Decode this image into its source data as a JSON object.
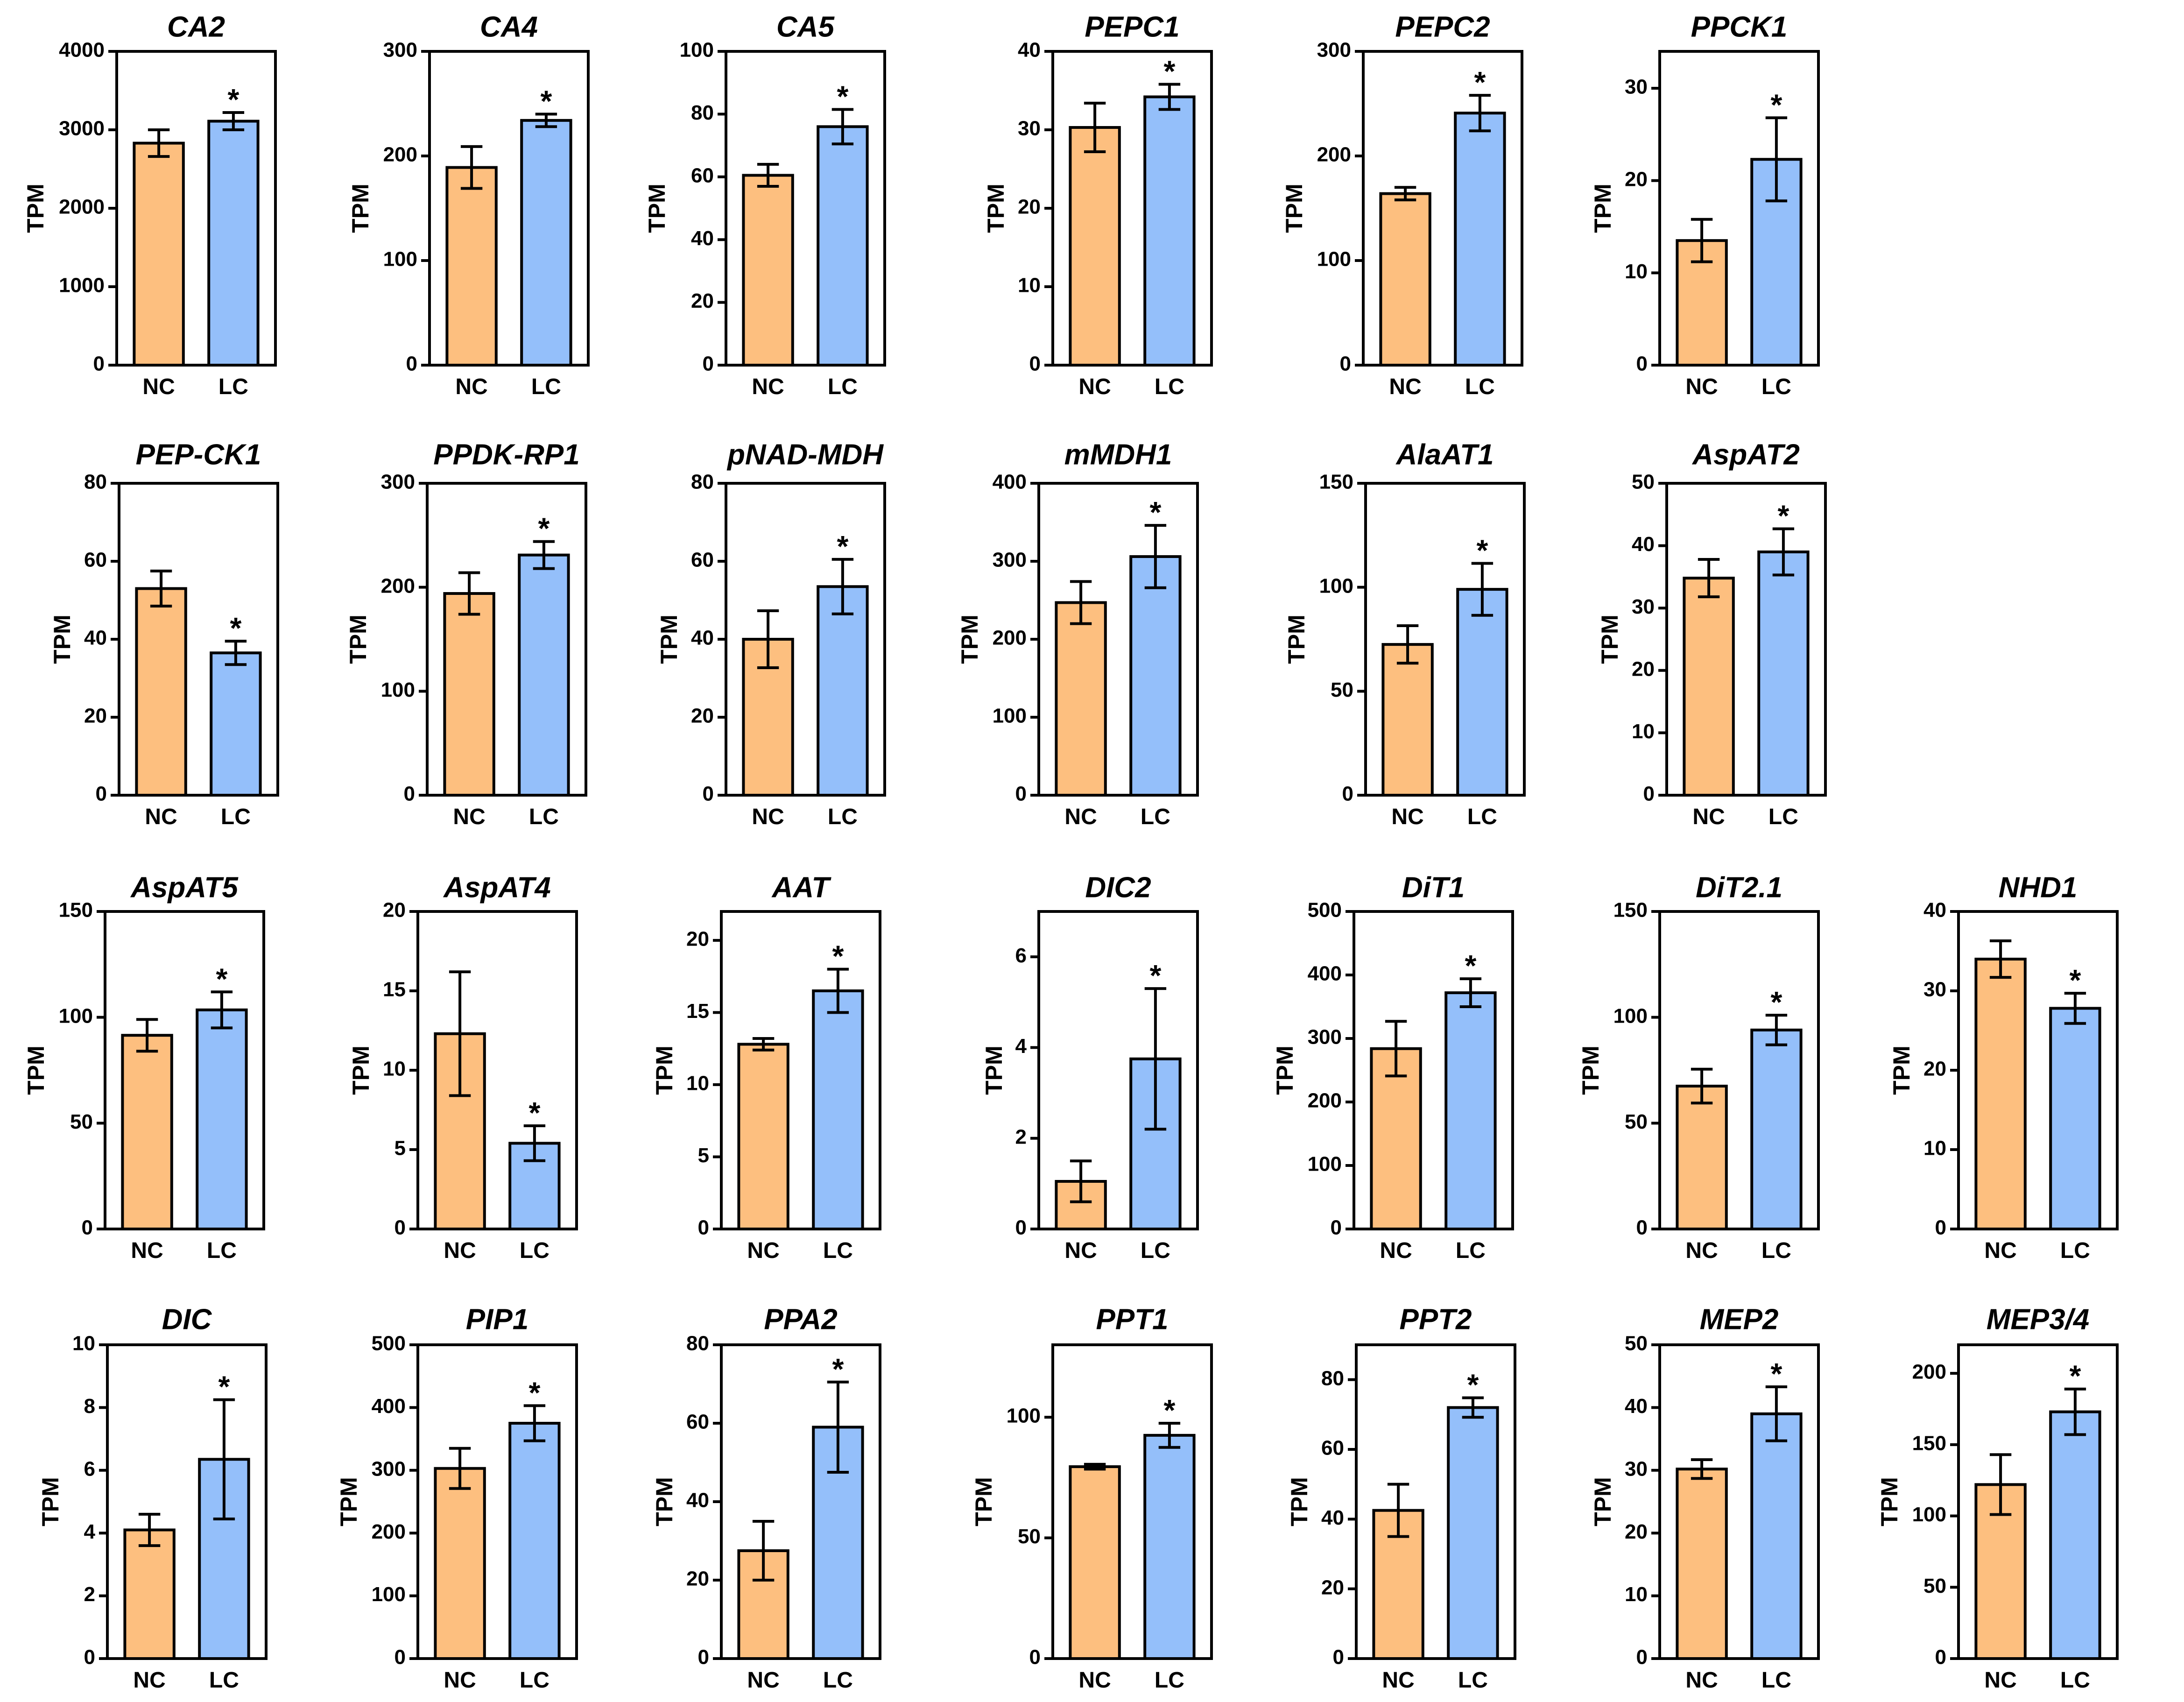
{
  "chart_data": {
    "type": "bar",
    "series_names": [
      "NC",
      "LC"
    ],
    "colors": {
      "NC": "#FDBF7F",
      "LC": "#94BFFA",
      "outline": "#000000"
    },
    "significance_marker": "*",
    "panels": [
      {
        "title": "CA2",
        "ylabel": "TPM",
        "categories": [
          "NC",
          "LC"
        ],
        "ylim": [
          0,
          4000
        ],
        "yticks": [
          "0",
          "1000",
          "2000",
          "3000",
          "4000"
        ],
        "values": [
          2830,
          3110
        ],
        "errors": [
          170,
          110
        ],
        "significant": [
          false,
          true
        ]
      },
      {
        "title": "CA4",
        "ylabel": "TPM",
        "categories": [
          "NC",
          "LC"
        ],
        "ylim": [
          0,
          300
        ],
        "yticks": [
          "0",
          "100",
          "200",
          "300"
        ],
        "values": [
          189,
          234
        ],
        "errors": [
          20,
          6
        ],
        "significant": [
          false,
          true
        ]
      },
      {
        "title": "CA5",
        "ylabel": "TPM",
        "categories": [
          "NC",
          "LC"
        ],
        "ylim": [
          0,
          100
        ],
        "yticks": [
          "0",
          "20",
          "40",
          "60",
          "80",
          "100"
        ],
        "values": [
          60.5,
          76
        ],
        "errors": [
          3.5,
          5.5
        ],
        "significant": [
          false,
          true
        ]
      },
      {
        "title": "PEPC1",
        "ylabel": "TPM",
        "categories": [
          "NC",
          "LC"
        ],
        "ylim": [
          0,
          40
        ],
        "yticks": [
          "0",
          "10",
          "20",
          "30",
          "40"
        ],
        "values": [
          30.3,
          34.2
        ],
        "errors": [
          3.1,
          1.6
        ],
        "significant": [
          false,
          true
        ]
      },
      {
        "title": "PEPC2",
        "ylabel": "TPM",
        "categories": [
          "NC",
          "LC"
        ],
        "ylim": [
          0,
          300
        ],
        "yticks": [
          "0",
          "100",
          "200",
          "300"
        ],
        "values": [
          164,
          241
        ],
        "errors": [
          6,
          17
        ],
        "significant": [
          false,
          true
        ]
      },
      {
        "title": "PPCK1",
        "ylabel": "TPM",
        "categories": [
          "NC",
          "LC"
        ],
        "ylim": [
          0,
          34
        ],
        "yticks": [
          "0",
          "10",
          "20",
          "30"
        ],
        "values": [
          13.5,
          22.3
        ],
        "errors": [
          2.3,
          4.5
        ],
        "significant": [
          false,
          true
        ]
      },
      {
        "title": "PEP-CK1",
        "ylabel": "TPM",
        "categories": [
          "NC",
          "LC"
        ],
        "ylim": [
          0,
          80
        ],
        "yticks": [
          "0",
          "20",
          "40",
          "60",
          "80"
        ],
        "values": [
          53,
          36.5
        ],
        "errors": [
          4.5,
          3
        ],
        "significant": [
          false,
          true
        ]
      },
      {
        "title": "PPDK-RP1",
        "ylabel": "TPM",
        "categories": [
          "NC",
          "LC"
        ],
        "ylim": [
          0,
          300
        ],
        "yticks": [
          "0",
          "100",
          "200",
          "300"
        ],
        "values": [
          194,
          231
        ],
        "errors": [
          20,
          13
        ],
        "significant": [
          false,
          true
        ]
      },
      {
        "title": "pNAD-MDH",
        "ylabel": "TPM",
        "categories": [
          "NC",
          "LC"
        ],
        "ylim": [
          0,
          80
        ],
        "yticks": [
          "0",
          "20",
          "40",
          "60",
          "80"
        ],
        "values": [
          40,
          53.5
        ],
        "errors": [
          7.3,
          7
        ],
        "significant": [
          false,
          true
        ]
      },
      {
        "title": "mMDH1",
        "ylabel": "TPM",
        "categories": [
          "NC",
          "LC"
        ],
        "ylim": [
          0,
          400
        ],
        "yticks": [
          "0",
          "100",
          "200",
          "300",
          "400"
        ],
        "values": [
          247,
          306
        ],
        "errors": [
          27,
          40
        ],
        "significant": [
          false,
          true
        ]
      },
      {
        "title": "AlaAT1",
        "ylabel": "TPM",
        "categories": [
          "NC",
          "LC"
        ],
        "ylim": [
          0,
          150
        ],
        "yticks": [
          "0",
          "50",
          "100",
          "150"
        ],
        "values": [
          72.5,
          99
        ],
        "errors": [
          9,
          12.5
        ],
        "significant": [
          false,
          true
        ]
      },
      {
        "title": "AspAT2",
        "ylabel": "TPM",
        "categories": [
          "NC",
          "LC"
        ],
        "ylim": [
          0,
          50
        ],
        "yticks": [
          "0",
          "10",
          "20",
          "30",
          "40",
          "50"
        ],
        "values": [
          34.8,
          39
        ],
        "errors": [
          3,
          3.7
        ],
        "significant": [
          false,
          true
        ]
      },
      {
        "title": "AspAT5",
        "ylabel": "TPM",
        "categories": [
          "NC",
          "LC"
        ],
        "ylim": [
          0,
          150
        ],
        "yticks": [
          "0",
          "50",
          "100",
          "150"
        ],
        "values": [
          91.5,
          103.5
        ],
        "errors": [
          7.5,
          8.5
        ],
        "significant": [
          false,
          true
        ]
      },
      {
        "title": "AspAT4",
        "ylabel": "TPM",
        "categories": [
          "NC",
          "LC"
        ],
        "ylim": [
          0,
          20
        ],
        "yticks": [
          "0",
          "5",
          "10",
          "15",
          "20"
        ],
        "values": [
          12.3,
          5.4
        ],
        "errors": [
          3.9,
          1.1
        ],
        "significant": [
          false,
          true
        ]
      },
      {
        "title": "AAT",
        "ylabel": "TPM",
        "categories": [
          "NC",
          "LC"
        ],
        "ylim": [
          0,
          22
        ],
        "yticks": [
          "0",
          "5",
          "10",
          "15",
          "20"
        ],
        "values": [
          12.8,
          16.5
        ],
        "errors": [
          0.4,
          1.5
        ],
        "significant": [
          false,
          true
        ]
      },
      {
        "title": "DIC2",
        "ylabel": "TPM",
        "categories": [
          "NC",
          "LC"
        ],
        "ylim": [
          0,
          7
        ],
        "yticks": [
          "0",
          "2",
          "4",
          "6"
        ],
        "values": [
          1.05,
          3.75
        ],
        "errors": [
          0.45,
          1.55
        ],
        "significant": [
          false,
          true
        ]
      },
      {
        "title": "DiT1",
        "ylabel": "TPM",
        "categories": [
          "NC",
          "LC"
        ],
        "ylim": [
          0,
          500
        ],
        "yticks": [
          "0",
          "100",
          "200",
          "300",
          "400",
          "500"
        ],
        "values": [
          284,
          372
        ],
        "errors": [
          43,
          22
        ],
        "significant": [
          false,
          true
        ]
      },
      {
        "title": "DiT2.1",
        "ylabel": "TPM",
        "categories": [
          "NC",
          "LC"
        ],
        "ylim": [
          0,
          150
        ],
        "yticks": [
          "0",
          "50",
          "100",
          "150"
        ],
        "values": [
          67.5,
          94
        ],
        "errors": [
          8,
          7
        ],
        "significant": [
          false,
          true
        ]
      },
      {
        "title": "NHD1",
        "ylabel": "TPM",
        "categories": [
          "NC",
          "LC"
        ],
        "ylim": [
          0,
          40
        ],
        "yticks": [
          "0",
          "10",
          "20",
          "30",
          "40"
        ],
        "values": [
          34,
          27.8
        ],
        "errors": [
          2.3,
          1.9
        ],
        "significant": [
          false,
          true
        ]
      },
      {
        "title": "DIC",
        "ylabel": "TPM",
        "categories": [
          "NC",
          "LC"
        ],
        "ylim": [
          0,
          10
        ],
        "yticks": [
          "0",
          "2",
          "4",
          "6",
          "8",
          "10"
        ],
        "values": [
          4.1,
          6.35
        ],
        "errors": [
          0.5,
          1.9
        ],
        "significant": [
          false,
          true
        ]
      },
      {
        "title": "PIP1",
        "ylabel": "TPM",
        "categories": [
          "NC",
          "LC"
        ],
        "ylim": [
          0,
          500
        ],
        "yticks": [
          "0",
          "100",
          "200",
          "300",
          "400",
          "500"
        ],
        "values": [
          303,
          375
        ],
        "errors": [
          32,
          28
        ],
        "significant": [
          false,
          true
        ]
      },
      {
        "title": "PPA2",
        "ylabel": "TPM",
        "categories": [
          "NC",
          "LC"
        ],
        "ylim": [
          0,
          80
        ],
        "yticks": [
          "0",
          "20",
          "40",
          "60",
          "80"
        ],
        "values": [
          27.5,
          59
        ],
        "errors": [
          7.5,
          11.5
        ],
        "significant": [
          false,
          true
        ]
      },
      {
        "title": "PPT1",
        "ylabel": "TPM",
        "categories": [
          "NC",
          "LC"
        ],
        "ylim": [
          0,
          130
        ],
        "yticks": [
          "0",
          "50",
          "100"
        ],
        "values": [
          79.5,
          92.5
        ],
        "errors": [
          1,
          5
        ],
        "significant": [
          false,
          true
        ]
      },
      {
        "title": "PPT2",
        "ylabel": "TPM",
        "categories": [
          "NC",
          "LC"
        ],
        "ylim": [
          0,
          90
        ],
        "yticks": [
          "0",
          "20",
          "40",
          "60",
          "80"
        ],
        "values": [
          42.5,
          72
        ],
        "errors": [
          7.5,
          2.8
        ],
        "significant": [
          false,
          true
        ]
      },
      {
        "title": "MEP2",
        "ylabel": "TPM",
        "categories": [
          "NC",
          "LC"
        ],
        "ylim": [
          0,
          50
        ],
        "yticks": [
          "0",
          "10",
          "20",
          "30",
          "40",
          "50"
        ],
        "values": [
          30.2,
          39
        ],
        "errors": [
          1.5,
          4.3
        ],
        "significant": [
          false,
          true
        ]
      },
      {
        "title": "MEP3/4",
        "ylabel": "TPM",
        "categories": [
          "NC",
          "LC"
        ],
        "ylim": [
          0,
          220
        ],
        "yticks": [
          "0",
          "50",
          "100",
          "150",
          "200"
        ],
        "values": [
          122,
          173
        ],
        "errors": [
          21,
          16
        ],
        "significant": [
          false,
          true
        ]
      }
    ]
  }
}
